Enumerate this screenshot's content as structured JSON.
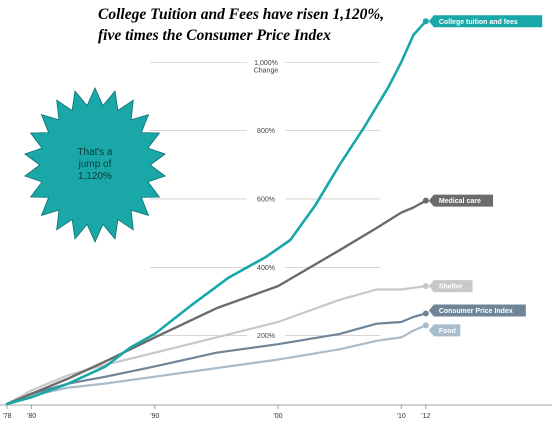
{
  "chart_data": {
    "type": "line",
    "title_lines": [
      "College Tuition and Fees have risen 1,120%,",
      "five times the Consumer Price Index"
    ],
    "y_ticks": [
      {
        "value": 200,
        "label": "200%"
      },
      {
        "value": 400,
        "label": "400%"
      },
      {
        "value": 600,
        "label": "600%"
      },
      {
        "value": 800,
        "label": "800%"
      },
      {
        "value": 1000,
        "label": "1,000%",
        "sublabel": "Change"
      }
    ],
    "x_ticks": [
      {
        "year": 1978,
        "label": "'78"
      },
      {
        "year": 1980,
        "label": "'80"
      },
      {
        "year": 1990,
        "label": "'90"
      },
      {
        "year": 2000,
        "label": "'00"
      },
      {
        "year": 2010,
        "label": "'10"
      },
      {
        "year": 2012,
        "label": "'12"
      }
    ],
    "xlim": [
      1978,
      2012.5
    ],
    "ylim": [
      0,
      1150
    ],
    "grid": true,
    "annotation": {
      "lines": [
        "That's a",
        "jump of",
        "1,120%"
      ],
      "color": "#1aa7a7"
    },
    "series": [
      {
        "name": "Food",
        "color": "#a9bccb",
        "x": [
          1978,
          1980,
          1983,
          1986,
          1990,
          1995,
          2000,
          2005,
          2008,
          2010,
          2011,
          2012
        ],
        "y": [
          0,
          25,
          48,
          60,
          80,
          105,
          130,
          160,
          185,
          195,
          215,
          230
        ]
      },
      {
        "name": "Consumer Price Index",
        "color": "#6f8597",
        "x": [
          1978,
          1980,
          1983,
          1986,
          1990,
          1995,
          2000,
          2005,
          2008,
          2010,
          2011,
          2012
        ],
        "y": [
          0,
          30,
          60,
          80,
          110,
          150,
          175,
          205,
          235,
          240,
          255,
          265
        ]
      },
      {
        "name": "Shelter",
        "color": "#c8c8c8",
        "x": [
          1978,
          1980,
          1983,
          1986,
          1990,
          1995,
          2000,
          2005,
          2008,
          2010,
          2011,
          2012
        ],
        "y": [
          0,
          40,
          85,
          115,
          150,
          195,
          240,
          305,
          335,
          335,
          340,
          345
        ]
      },
      {
        "name": "Medical care",
        "color": "#6b6b6b",
        "x": [
          1978,
          1980,
          1983,
          1986,
          1990,
          1995,
          2000,
          2005,
          2008,
          2010,
          2011,
          2012
        ],
        "y": [
          0,
          30,
          75,
          125,
          195,
          280,
          345,
          450,
          515,
          560,
          575,
          595
        ]
      },
      {
        "name": "College tuition and fees",
        "color": "#18a8a8",
        "x": [
          1978,
          1980,
          1983,
          1986,
          1988,
          1990,
          1993,
          1996,
          1999,
          2001,
          2003,
          2005,
          2007,
          2009,
          2010,
          2011,
          2012
        ],
        "y": [
          0,
          20,
          60,
          110,
          165,
          205,
          290,
          370,
          430,
          480,
          580,
          700,
          810,
          930,
          1000,
          1080,
          1120
        ]
      }
    ]
  }
}
